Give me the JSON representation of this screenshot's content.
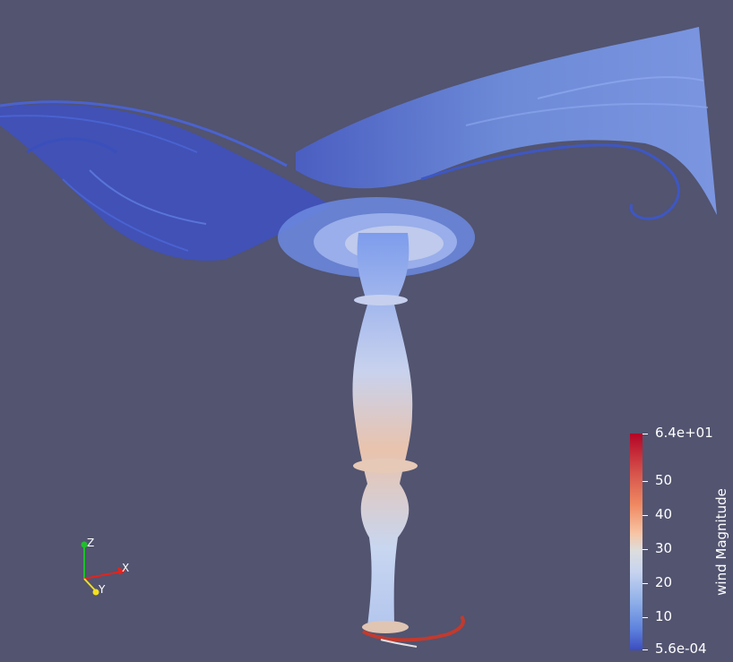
{
  "scene": {
    "background": "#525470",
    "description_colors": {
      "low": "#3b4cc0",
      "mid": "#dddddd",
      "high": "#b40426"
    }
  },
  "colorbar": {
    "title": "wind Magnitude",
    "max_label": "6.4e+01",
    "min_label": "5.6e-04",
    "ticks": [
      "50",
      "40",
      "30",
      "20",
      "10"
    ]
  },
  "orientation_axes": {
    "x_label": "X",
    "y_label": "Y",
    "z_label": "Z",
    "x_color": "#e8221a",
    "y_color": "#f2e01f",
    "z_color": "#1fbf2a"
  }
}
